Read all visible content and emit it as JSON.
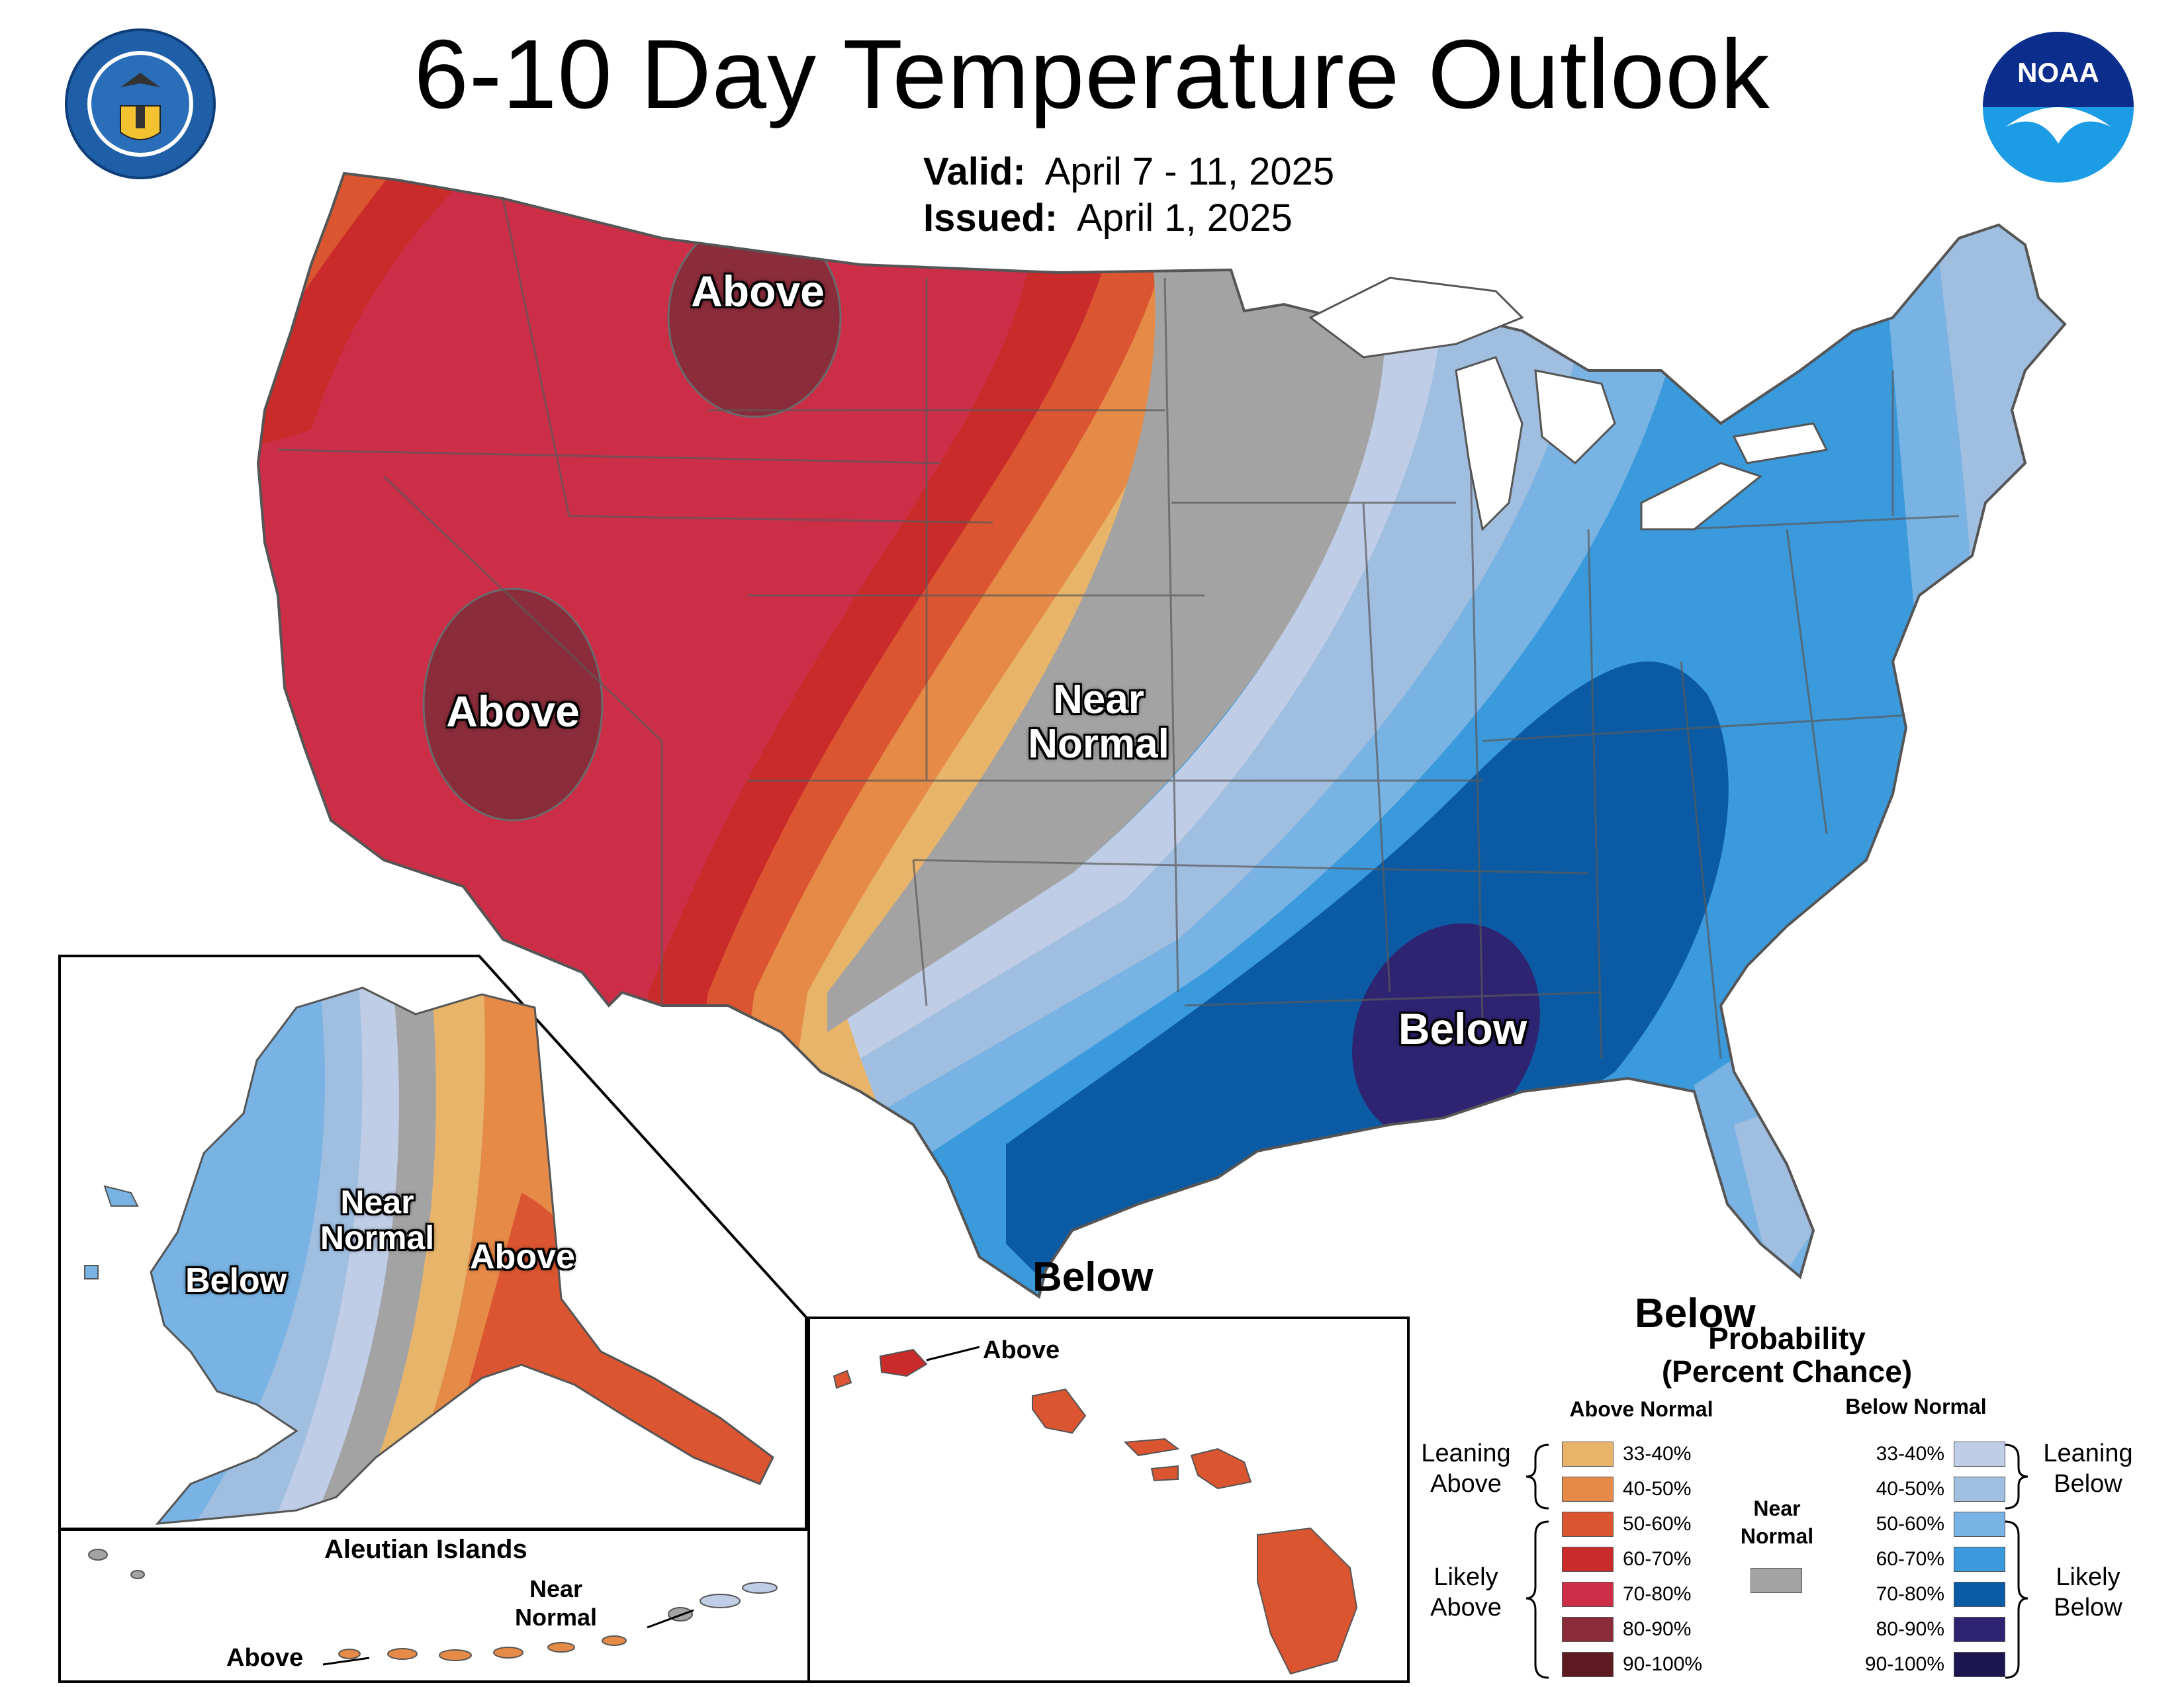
{
  "title": "6-10 Day Temperature Outlook",
  "valid": {
    "label": "Valid:",
    "value": "April 7 - 11, 2025"
  },
  "issued": {
    "label": "Issued:",
    "value": "April 1, 2025"
  },
  "logos": {
    "left": "department-of-commerce-seal",
    "right": "noaa-logo",
    "right_text": "NOAA"
  },
  "map_labels": {
    "above_north": "Above",
    "above_southwest": "Above",
    "near_normal": "Near Normal",
    "below_southeast": "Below",
    "below_texas": "Below",
    "below_florida": "Below"
  },
  "alaska_labels": {
    "below": "Below",
    "near_normal": "Near Normal",
    "above": "Above"
  },
  "aleutian": {
    "title": "Aleutian Islands",
    "near_normal": "Near Normal",
    "above": "Above"
  },
  "hawaii": {
    "above": "Above"
  },
  "legend": {
    "title": "Probability",
    "subtitle": "(Percent Chance)",
    "above_header": "Above Normal",
    "below_header": "Below Normal",
    "near_header": "Near Normal",
    "leaning_above": "Leaning Above",
    "likely_above": "Likely Above",
    "leaning_below": "Leaning Below",
    "likely_below": "Likely Below",
    "above_rows": [
      {
        "label": "33-40%",
        "color": "#E8B46A"
      },
      {
        "label": "40-50%",
        "color": "#E68A48"
      },
      {
        "label": "50-60%",
        "color": "#DB5530"
      },
      {
        "label": "60-70%",
        "color": "#C92B2B"
      },
      {
        "label": "70-80%",
        "color": "#CC2E47"
      },
      {
        "label": "80-90%",
        "color": "#8A2C3A"
      },
      {
        "label": "90-100%",
        "color": "#5E1B22"
      }
    ],
    "below_rows": [
      {
        "label": "33-40%",
        "color": "#BFCDE6"
      },
      {
        "label": "40-50%",
        "color": "#A0BFE0"
      },
      {
        "label": "50-60%",
        "color": "#79B3E3"
      },
      {
        "label": "60-70%",
        "color": "#3A9ADB"
      },
      {
        "label": "70-80%",
        "color": "#0A5BA3"
      },
      {
        "label": "80-90%",
        "color": "#2E2472"
      },
      {
        "label": "90-100%",
        "color": "#1B1650"
      }
    ],
    "near_color": "#A3A3A3"
  }
}
